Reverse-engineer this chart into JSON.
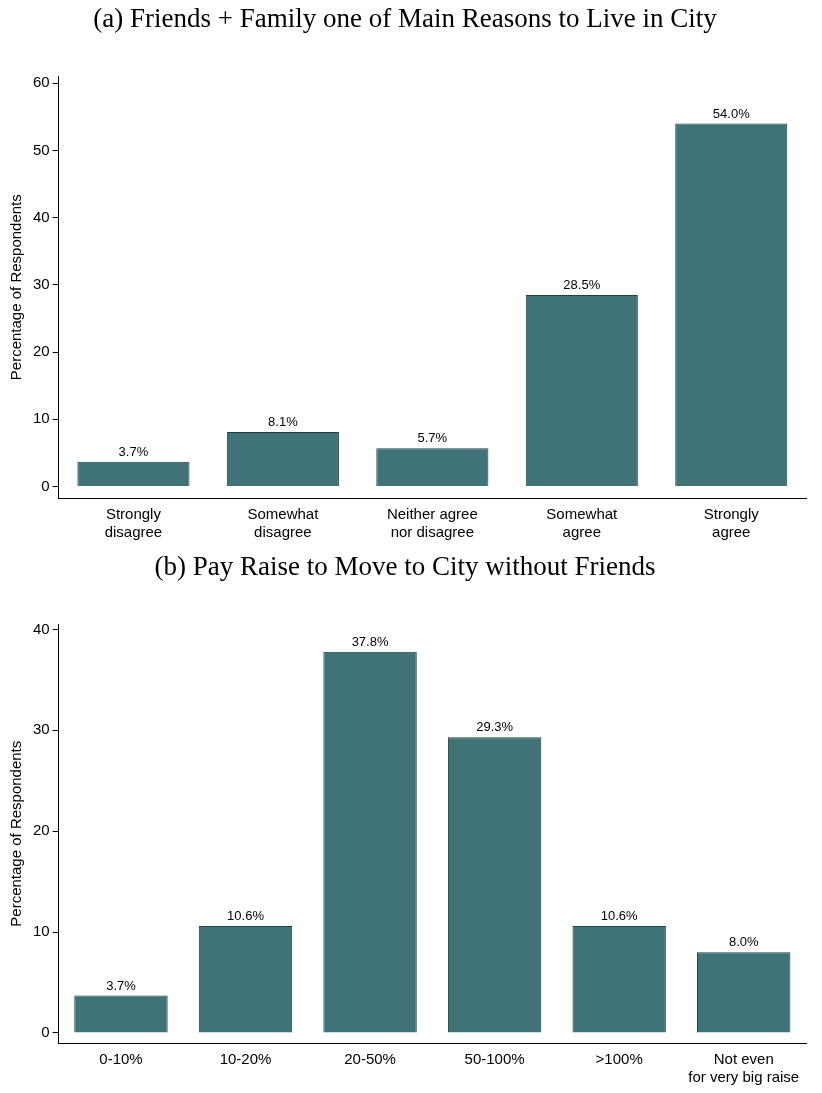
{
  "chart_data": [
    {
      "type": "bar",
      "title": "(a) Friends + Family one of Main Reasons to Live in City",
      "ylabel": "Percentage of Respondents",
      "categories": [
        "Strongly\ndisagree",
        "Somewhat\ndisagree",
        "Neither agree\nnor disagree",
        "Somewhat\nagree",
        "Strongly\nagree"
      ],
      "values": [
        3.7,
        8.1,
        5.7,
        28.5,
        54.0
      ],
      "value_labels": [
        "3.7%",
        "8.1%",
        "5.7%",
        "28.5%",
        "54.0%"
      ],
      "color": "#3f7377",
      "ylim": [
        -1.7,
        61
      ],
      "yticks": [
        0,
        10,
        20,
        30,
        40,
        50,
        60
      ],
      "grid": false,
      "legend": false
    },
    {
      "type": "bar",
      "title": "(b) Pay Raise to Move to City without Friends",
      "ylabel": "Percentage of Respondents",
      "categories": [
        "0-10%",
        "10-20%",
        "20-50%",
        "50-100%",
        ">100%",
        "Not even\nfor very big raise"
      ],
      "values": [
        3.7,
        10.6,
        37.8,
        29.3,
        10.6,
        8.0
      ],
      "value_labels": [
        "3.7%",
        "10.6%",
        "37.8%",
        "29.3%",
        "10.6%",
        "8.0%"
      ],
      "color": "#3f7377",
      "ylim": [
        -1,
        40.5
      ],
      "yticks": [
        0,
        10,
        20,
        30,
        40
      ],
      "grid": false,
      "legend": false
    }
  ]
}
